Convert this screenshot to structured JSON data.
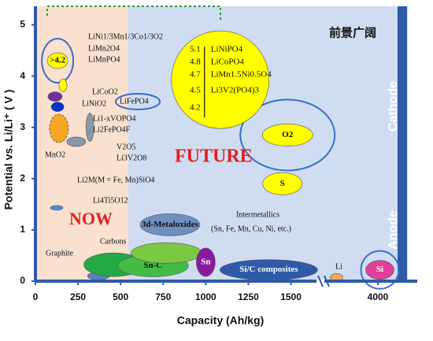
{
  "chart_data": {
    "type": "scatter",
    "x_label": "Capacity (Ah/kg)",
    "y_label": "Potential vs. Li/Li⁺ ( V )",
    "xlim": [
      0,
      4200
    ],
    "x_break": [
      1650,
      3800
    ],
    "ylim": [
      0,
      5.3
    ],
    "xticks": [
      0,
      250,
      500,
      750,
      1000,
      1250,
      1500,
      4000
    ],
    "yticks": [
      0,
      1,
      2,
      3,
      4,
      5
    ],
    "annotations": [
      "NOW",
      "FUTURE",
      "前景广阔",
      "Cathode",
      "Anode"
    ],
    "labels": [
      "LiNi1/3Mn1/3Co1/3O2",
      "LiMn2O4",
      "LiMnPO4",
      "LiCoO2",
      "LiNiO2",
      "LiFePO4",
      "Li1-xVOPO4",
      "Li2FePO4F",
      "MnO2",
      "V2O5",
      "Li3V2O8",
      "Li2M(M = Fe, Mn)SiO4",
      "Li4Ti5O12",
      "Graphite",
      "Carbons",
      "Intermetallics",
      "(Sn, Fe, Mn, Cu, Ni, etc.)",
      "Li"
    ],
    "points": [
      {
        "label": ">4.2",
        "x": 130,
        "y": 4.3,
        "color": "#ffff00"
      },
      {
        "x": 162,
        "y": 3.82,
        "color": "#ffff00"
      },
      {
        "x": 115,
        "y": 3.6,
        "color": "#7030a0"
      },
      {
        "x": 130,
        "y": 3.4,
        "color": "#0033cc"
      },
      {
        "x": 138,
        "y": 2.98,
        "color": "#f5a623"
      },
      {
        "x": 240,
        "y": 2.72,
        "color": "#8899aa"
      },
      {
        "x": 320,
        "y": 3.0,
        "color": "#8899aa"
      },
      {
        "x": 125,
        "y": 1.43,
        "color": "#4a90e2"
      },
      {
        "x": 370,
        "y": 0.1,
        "color": "#5b7fc7"
      },
      {
        "x": 460,
        "y": 0.32,
        "color": "#22aa44"
      },
      {
        "label": "Sn-C",
        "x": 690,
        "y": 0.3,
        "color": "#44bb44"
      },
      {
        "label": "3d-Metaloxides",
        "x": 790,
        "y": 1.1,
        "color": "#6f8fbf"
      },
      {
        "x": 770,
        "y": 0.55,
        "color": "#7ac943"
      },
      {
        "label": "Sn",
        "x": 1000,
        "y": 0.37,
        "color": "#8b1a9b"
      },
      {
        "label": "Si/C composites",
        "x": 1370,
        "y": 0.22,
        "color": "#2e5aa8"
      },
      {
        "x": 3790,
        "y": 0.07,
        "color": "#f4a460"
      },
      {
        "label": "Si",
        "x": 4010,
        "y": 0.22,
        "color": "#e0409a"
      },
      {
        "label": "O2",
        "x": 1480,
        "y": 2.85,
        "color": "#ffff00"
      },
      {
        "label": "S",
        "x": 1450,
        "y": 1.9,
        "color": "#ffff00"
      },
      {
        "x": 1085,
        "y": 3.93,
        "color": "#ffff00"
      }
    ],
    "future": {
      "potentials": [
        5.1,
        4.8,
        4.7,
        4.5,
        4.2
      ],
      "materials": [
        "LiNiPO4",
        "LiCoPO4",
        "LiMn1.5Ni0.5O4",
        "Li3V2(PO4)3",
        null
      ]
    }
  }
}
